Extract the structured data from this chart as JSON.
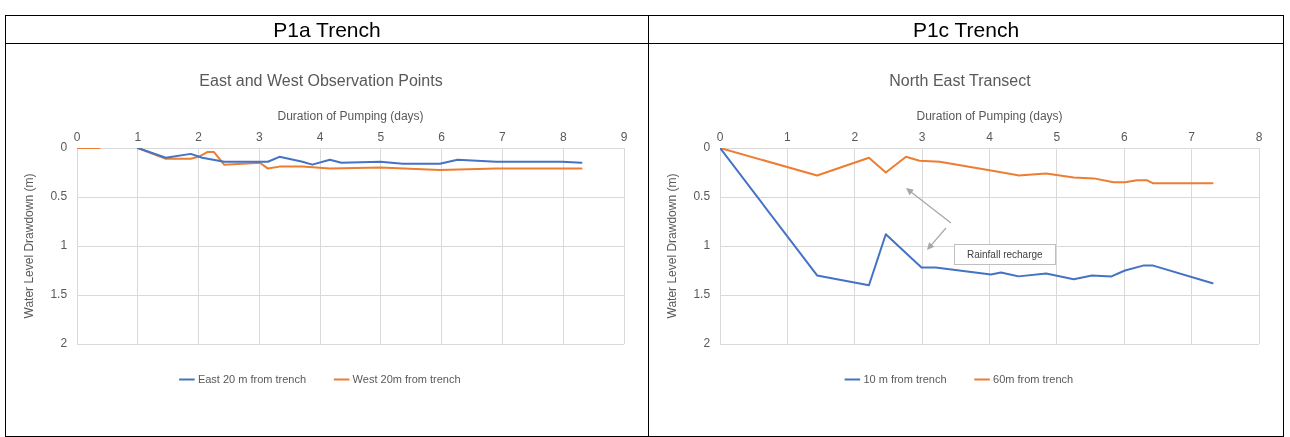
{
  "chart_data": [
    {
      "type": "line",
      "title": "P1a Trench",
      "subtitle": "East and West Observation Points",
      "xlabel": "Duration of Pumping (days)",
      "ylabel": "Water Level Drawdown (m)",
      "xlim": [
        0,
        9
      ],
      "xticks": [
        0,
        1,
        2,
        3,
        4,
        5,
        6,
        7,
        8,
        9
      ],
      "ylim": [
        2,
        0
      ],
      "yticks": [
        0,
        0.5,
        1,
        1.5,
        2
      ],
      "grid": true,
      "legend": "bottom",
      "marker": "none",
      "line_style": "solid",
      "series": [
        {
          "name": "East 20 m from trench",
          "color": "#4472c4",
          "x": [
            1,
            1.46,
            1.87,
            2.06,
            2.42,
            3.01,
            3.14,
            3.33,
            3.71,
            3.87,
            4.16,
            4.35,
            4.99,
            5.36,
            5.97,
            6.26,
            6.9,
            7.98,
            8.3
          ],
          "values": [
            0,
            0.1,
            0.06,
            0.1,
            0.14,
            0.14,
            0.14,
            0.09,
            0.14,
            0.17,
            0.12,
            0.15,
            0.14,
            0.16,
            0.16,
            0.12,
            0.14,
            0.14,
            0.15
          ]
        },
        {
          "name": "West 20m from trench",
          "color": "#ed7d31",
          "x": [
            0,
            0.37,
            0.6,
            1,
            1.46,
            1.87,
            2.0,
            2.15,
            2.25,
            2.42,
            3.01,
            3.14,
            3.33,
            3.71,
            4.16,
            4.99,
            5.97,
            6.9,
            8.3
          ],
          "values": [
            0,
            0,
            null,
            0,
            0.11,
            0.11,
            0.09,
            0.04,
            0.04,
            0.17,
            0.15,
            0.21,
            0.19,
            0.19,
            0.21,
            0.2,
            0.225,
            0.21,
            0.21
          ]
        }
      ]
    },
    {
      "type": "line",
      "title": "P1c Trench",
      "subtitle": "North East Transect",
      "xlabel": "Duration of Pumping (days)",
      "ylabel": "Water Level Drawdown (m)",
      "xlim": [
        0,
        8
      ],
      "xticks": [
        0,
        1,
        2,
        3,
        4,
        5,
        6,
        7,
        8
      ],
      "ylim": [
        2,
        0
      ],
      "yticks": [
        0,
        0.5,
        1,
        1.5,
        2
      ],
      "grid": true,
      "legend": "bottom",
      "marker": "none",
      "line_style": "solid",
      "annotations": [
        "Rainfall recharge"
      ],
      "series": [
        {
          "name": "10 m from trench",
          "color": "#4472c4",
          "x": [
            0,
            1.44,
            2.21,
            2.46,
            2.99,
            3.2,
            4.02,
            4.17,
            4.43,
            4.84,
            5.25,
            5.52,
            5.81,
            6.01,
            6.28,
            6.43,
            7.31
          ],
          "values": [
            0,
            1.3,
            1.4,
            0.88,
            1.22,
            1.22,
            1.29,
            1.27,
            1.31,
            1.28,
            1.34,
            1.3,
            1.31,
            1.25,
            1.2,
            1.2,
            1.38
          ]
        },
        {
          "name": "60m from trench",
          "color": "#ed7d31",
          "x": [
            0,
            1.44,
            2.21,
            2.46,
            2.76,
            2.96,
            3.26,
            4.02,
            4.43,
            4.84,
            5.25,
            5.55,
            5.84,
            6.01,
            6.19,
            6.34,
            6.43,
            7.31
          ],
          "values": [
            0,
            0.28,
            0.1,
            0.25,
            0.09,
            0.13,
            0.14,
            0.23,
            0.28,
            0.26,
            0.3,
            0.31,
            0.35,
            0.35,
            0.33,
            0.33,
            0.36,
            0.36
          ]
        }
      ]
    }
  ]
}
